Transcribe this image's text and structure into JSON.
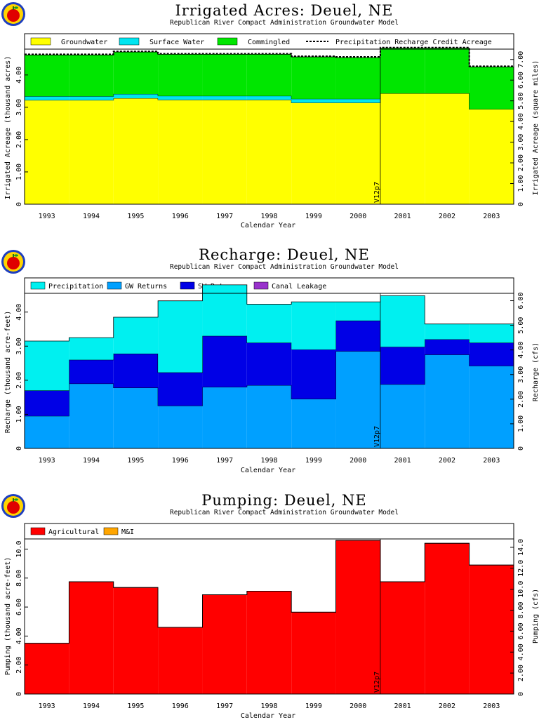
{
  "chart_data": [
    {
      "type": "area",
      "title": "Irrigated Acres: Deuel, NE",
      "subtitle": "Republican River Compact Administration Groundwater Model",
      "xlabel": "Calendar Year",
      "ylabel": "Irrigated Acreage (thousand acres)",
      "ylabel_right": "Irrigated Acreage (square miles)",
      "categories": [
        "1993",
        "1994",
        "1995",
        "1996",
        "1997",
        "1998",
        "1999",
        "2000",
        "2001",
        "2002",
        "2003"
      ],
      "ylim": [
        0,
        4.8
      ],
      "yticks": [
        "0",
        "1.00",
        "2.00",
        "3.00",
        "4.00"
      ],
      "ylim_right": [
        0,
        7.5
      ],
      "yticks_right": [
        "0",
        "1.00",
        "2.00",
        "3.00",
        "4.00",
        "5.00",
        "6.00",
        "7.00"
      ],
      "legend": [
        "Groundwater",
        "Surface Water",
        "Commingled",
        "Precipitation Recharge Credit Acreage"
      ],
      "colors": [
        "#ffff00",
        "#00e5f0",
        "#00e600"
      ],
      "series": [
        {
          "name": "Groundwater",
          "values": [
            3.22,
            3.22,
            3.28,
            3.23,
            3.23,
            3.23,
            3.14,
            3.14,
            3.43,
            3.43,
            2.94
          ]
        },
        {
          "name": "Surface Water",
          "values": [
            0.12,
            0.12,
            0.13,
            0.12,
            0.12,
            0.12,
            0.12,
            0.12,
            0.0,
            0.0,
            0.0
          ]
        },
        {
          "name": "Commingled",
          "values": [
            1.28,
            1.28,
            1.3,
            1.29,
            1.29,
            1.29,
            1.3,
            1.28,
            1.4,
            1.4,
            1.31
          ]
        },
        {
          "name": "Precipitation Recharge Credit Acreage",
          "values": [
            4.64,
            4.64,
            4.73,
            4.66,
            4.66,
            4.66,
            4.58,
            4.56,
            4.85,
            4.85,
            4.27
          ]
        }
      ],
      "annotation": "V12p7",
      "vline_after": "2000"
    },
    {
      "type": "area",
      "title": "Recharge: Deuel, NE",
      "subtitle": "Republican River Compact Administration Groundwater Model",
      "xlabel": "Calendar Year",
      "ylabel": "Recharge (thousand acre-feet)",
      "ylabel_right": "Recharge (cfs)",
      "categories": [
        "1993",
        "1994",
        "1995",
        "1996",
        "1997",
        "1998",
        "1999",
        "2000",
        "2001",
        "2002",
        "2003"
      ],
      "ylim": [
        0,
        4.55
      ],
      "yticks": [
        "0",
        "1.00",
        "2.00",
        "3.00",
        "4.00"
      ],
      "ylim_right": [
        0,
        6.3
      ],
      "yticks_right": [
        "0",
        "1.00",
        "2.00",
        "3.00",
        "4.00",
        "5.00",
        "6.00"
      ],
      "legend": [
        "Precipitation",
        "GW Returns",
        "SW Returns",
        "Canal Leakage"
      ],
      "colors": [
        "#00f0f0",
        "#00a0ff",
        "#0000e6",
        "#9932cc"
      ],
      "series": [
        {
          "name": "GW Returns",
          "values": [
            0.95,
            1.9,
            1.78,
            1.25,
            1.8,
            1.85,
            1.45,
            2.85,
            1.88,
            2.75,
            2.42
          ]
        },
        {
          "name": "SW Returns",
          "values": [
            0.75,
            0.7,
            1.0,
            0.98,
            1.5,
            1.25,
            1.45,
            0.9,
            1.1,
            0.45,
            0.68
          ]
        },
        {
          "name": "Canal Leakage",
          "values": [
            0,
            0,
            0,
            0,
            0,
            0,
            0,
            0,
            0,
            0,
            0
          ]
        },
        {
          "name": "Precipitation",
          "values": [
            1.45,
            0.65,
            1.07,
            2.1,
            1.5,
            1.13,
            1.4,
            0.55,
            1.5,
            0.45,
            0.55
          ]
        }
      ],
      "annotation": "V12p7",
      "vline_after": "2000"
    },
    {
      "type": "area",
      "title": "Pumping: Deuel, NE",
      "subtitle": "Republican River Compact Administration Groundwater Model",
      "xlabel": "Calendar Year",
      "ylabel": "Pumping (thousand acre-feet)",
      "ylabel_right": "Pumping (cfs)",
      "categories": [
        "1993",
        "1994",
        "1995",
        "1996",
        "1997",
        "1998",
        "1999",
        "2000",
        "2001",
        "2002",
        "2003"
      ],
      "ylim": [
        0,
        10.7
      ],
      "yticks": [
        "0",
        "2.00",
        "4.00",
        "6.00",
        "8.00",
        "10.0"
      ],
      "ylim_right": [
        0,
        14.8
      ],
      "yticks_right": [
        "0",
        "2.00",
        "4.00",
        "6.00",
        "8.00",
        "10.0",
        "12.0",
        "14.0"
      ],
      "legend": [
        "Agricultural",
        "M&I"
      ],
      "colors": [
        "#ff0000",
        "#ffa500"
      ],
      "series": [
        {
          "name": "Agricultural",
          "values": [
            3.5,
            7.75,
            7.35,
            4.6,
            6.85,
            7.1,
            5.65,
            10.6,
            7.75,
            10.4,
            8.9
          ]
        },
        {
          "name": "M&I",
          "values": [
            0,
            0,
            0,
            0,
            0,
            0,
            0,
            0,
            0,
            0,
            0
          ]
        }
      ],
      "annotation": "V12p7",
      "vline_after": "2000"
    }
  ]
}
